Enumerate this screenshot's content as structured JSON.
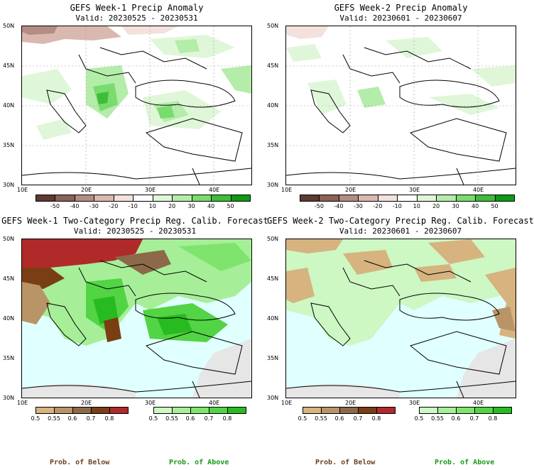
{
  "panels": [
    {
      "title": "GEFS Week-1 Precip Anomaly",
      "valid": "Valid: 20230525 - 20230531"
    },
    {
      "title": "GEFS Week-2 Precip Anomaly",
      "valid": "Valid: 20230601 - 20230607"
    },
    {
      "title": "GEFS Week-1 Two-Category Precip Reg. Calib. Forecast",
      "valid": "Valid: 20230525 - 20230531"
    },
    {
      "title": "GEFS Week-2 Two-Category Precip Reg. Calib. Forecast",
      "valid": "Valid: 20230601 - 20230607"
    }
  ],
  "axes": {
    "lat_labels": [
      "50N",
      "45N",
      "40N",
      "35N",
      "30N"
    ],
    "lon_labels": [
      "10E",
      "20E",
      "30E",
      "40E"
    ]
  },
  "anomaly_colorbar": {
    "ticks": [
      "-50",
      "-40",
      "-30",
      "-20",
      "-10",
      "10",
      "20",
      "30",
      "40",
      "50"
    ],
    "colors": [
      "#5e3a33",
      "#8c6156",
      "#b58c84",
      "#d9b8b0",
      "#f2e1dc",
      "#ffffff",
      "#dff7d8",
      "#b4ecaa",
      "#79dc6d",
      "#3ebd3a",
      "#0f9a14"
    ]
  },
  "below_colorbar": {
    "ticks": [
      "0.5",
      "0.55",
      "0.6",
      "0.7",
      "0.8"
    ],
    "colors": [
      "#d6b37f",
      "#b89467",
      "#8c6a49",
      "#7a3e14",
      "#b02a2a"
    ]
  },
  "above_colorbar": {
    "ticks": [
      "0.5",
      "0.55",
      "0.6",
      "0.7",
      "0.8"
    ],
    "colors": [
      "#cdf7c3",
      "#a6ef98",
      "#7fe46d",
      "#52d444",
      "#27bb20"
    ]
  },
  "legend": {
    "below": "Prob. of Below",
    "above": "Prob. of Above"
  },
  "colors": {
    "sea_prob": "#e0ffff",
    "below_text": "#6b4226",
    "above_text": "#1a9a1a",
    "nodata_land": "#e6e6e6"
  }
}
